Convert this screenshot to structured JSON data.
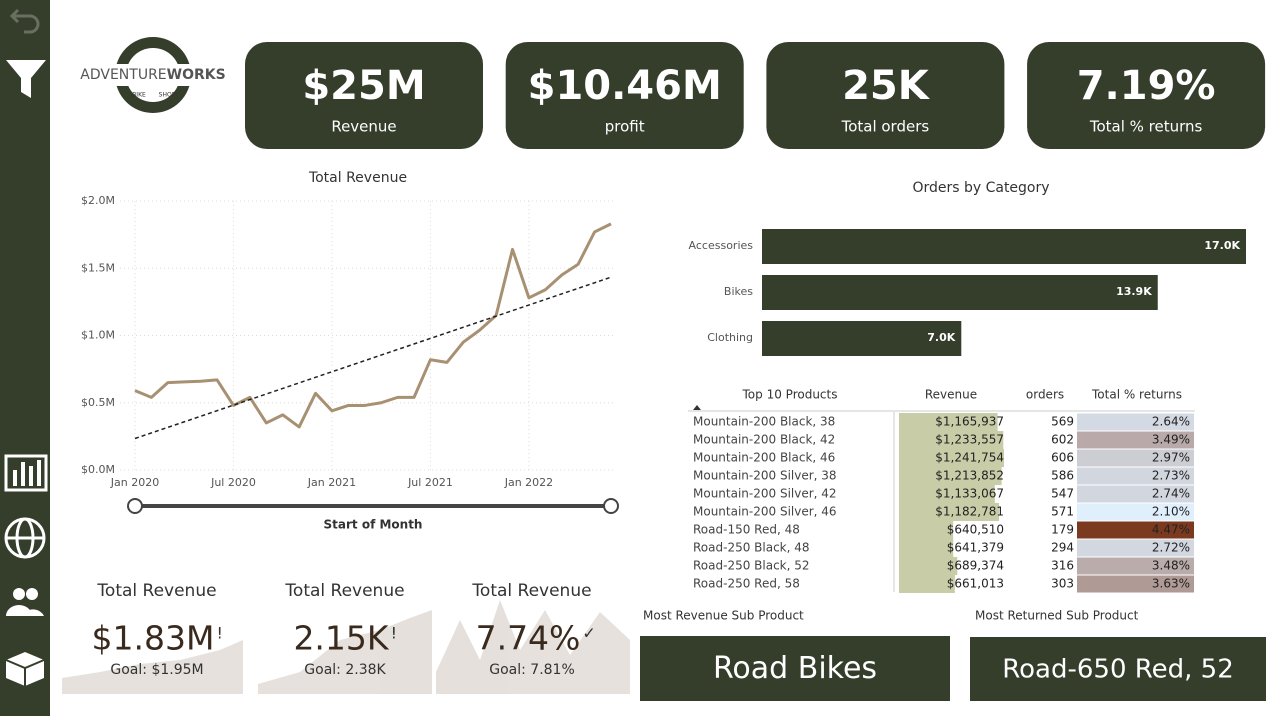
{
  "logo": {
    "name_light": "ADVENTURE",
    "name_bold": "WORKS",
    "left": "BIKE",
    "right": "SHOP"
  },
  "kpis": [
    {
      "value": "$25M",
      "label": "Revenue"
    },
    {
      "value": "$10.46M",
      "label": "profit"
    },
    {
      "value": "25K",
      "label": "Total orders"
    },
    {
      "value": "7.19%",
      "label": "Total % returns"
    }
  ],
  "chart_data": [
    {
      "type": "line",
      "title": "Total Revenue",
      "xlabel": "Start of Month",
      "color": "#a89072",
      "trendline": true,
      "grid": true,
      "x": [
        "2020-01",
        "2020-02",
        "2020-03",
        "2020-04",
        "2020-05",
        "2020-06",
        "2020-07",
        "2020-08",
        "2020-09",
        "2020-10",
        "2020-11",
        "2020-12",
        "2021-01",
        "2021-02",
        "2021-03",
        "2021-04",
        "2021-05",
        "2021-06",
        "2021-07",
        "2021-08",
        "2021-09",
        "2021-10",
        "2021-11",
        "2021-12",
        "2022-01",
        "2022-02",
        "2022-03",
        "2022-04",
        "2022-05",
        "2022-06"
      ],
      "values": [
        0.59,
        0.54,
        0.65,
        0.655,
        0.66,
        0.67,
        0.48,
        0.54,
        0.35,
        0.41,
        0.32,
        0.57,
        0.44,
        0.48,
        0.48,
        0.5,
        0.54,
        0.54,
        0.82,
        0.8,
        0.95,
        1.04,
        1.15,
        1.64,
        1.28,
        1.34,
        1.45,
        1.53,
        1.77,
        1.83
      ],
      "xlim": [
        "2020-01",
        "2022-06"
      ],
      "xticks": [
        {
          "value": "2020-01",
          "label": "Jan 2020"
        },
        {
          "value": "2020-07",
          "label": "Jul 2020"
        },
        {
          "value": "2021-01",
          "label": "Jan 2021"
        },
        {
          "value": "2021-07",
          "label": "Jul 2021"
        },
        {
          "value": "2022-01",
          "label": "Jan 2022"
        }
      ],
      "ylim": [
        0,
        2
      ],
      "yticks": [
        {
          "value": 0,
          "label": "$0.0M"
        },
        {
          "value": 0.5,
          "label": "$0.5M"
        },
        {
          "value": 1,
          "label": "$1.0M"
        },
        {
          "value": 1.5,
          "label": "$1.5M"
        },
        {
          "value": 2,
          "label": "$2.0M"
        }
      ]
    },
    {
      "type": "bar",
      "title": "Orders by Category",
      "orientation": "horizontal",
      "color": "#353d2b",
      "categories": [
        "Accessories",
        "Bikes",
        "Clothing"
      ],
      "values": [
        17000,
        13900,
        7000
      ],
      "value_labels": [
        "17.0K",
        "13.9K",
        "7.0K"
      ]
    }
  ],
  "table": {
    "headers": [
      "Top 10 Products",
      "Revenue",
      "orders",
      "Total % returns"
    ],
    "bar_color": "#c8cda8",
    "returns_colors": [
      "#e0effc",
      "#c6c2c6",
      "#7b3a20"
    ],
    "rows": [
      {
        "product": "Mountain-200 Black, 38",
        "revenue": {
          "value": 1165937,
          "label": "$1,165,937"
        },
        "orders": 569,
        "returns": {
          "value": 2.64,
          "label": "2.64%"
        }
      },
      {
        "product": "Mountain-200 Black, 42",
        "revenue": {
          "value": 1233557,
          "label": "$1,233,557"
        },
        "orders": 602,
        "returns": {
          "value": 3.49,
          "label": "3.49%"
        }
      },
      {
        "product": "Mountain-200 Black, 46",
        "revenue": {
          "value": 1241754,
          "label": "$1,241,754"
        },
        "orders": 606,
        "returns": {
          "value": 2.97,
          "label": "2.97%"
        }
      },
      {
        "product": "Mountain-200 Silver, 38",
        "revenue": {
          "value": 1213852,
          "label": "$1,213,852"
        },
        "orders": 586,
        "returns": {
          "value": 2.73,
          "label": "2.73%"
        }
      },
      {
        "product": "Mountain-200 Silver, 42",
        "revenue": {
          "value": 1133067,
          "label": "$1,133,067"
        },
        "orders": 547,
        "returns": {
          "value": 2.74,
          "label": "2.74%"
        }
      },
      {
        "product": "Mountain-200 Silver, 46",
        "revenue": {
          "value": 1182781,
          "label": "$1,182,781"
        },
        "orders": 571,
        "returns": {
          "value": 2.1,
          "label": "2.10%"
        }
      },
      {
        "product": "Road-150 Red, 48",
        "revenue": {
          "value": 640510,
          "label": "$640,510"
        },
        "orders": 179,
        "returns": {
          "value": 4.47,
          "label": "4.47%"
        }
      },
      {
        "product": "Road-250 Black, 48",
        "revenue": {
          "value": 641379,
          "label": "$641,379"
        },
        "orders": 294,
        "returns": {
          "value": 2.72,
          "label": "2.72%"
        }
      },
      {
        "product": "Road-250 Black, 52",
        "revenue": {
          "value": 689374,
          "label": "$689,374"
        },
        "orders": 316,
        "returns": {
          "value": 3.48,
          "label": "3.48%"
        }
      },
      {
        "product": "Road-250 Red, 58",
        "revenue": {
          "value": 661013,
          "label": "$661,013"
        },
        "orders": 303,
        "returns": {
          "value": 3.63,
          "label": "3.63%"
        }
      }
    ]
  },
  "goal_cards": [
    {
      "title": "Total Revenue",
      "value": "$1.83M",
      "status": "!",
      "goal": "Goal: $1.95M"
    },
    {
      "title": "Total Revenue",
      "value": "2.15K",
      "status": "!",
      "goal": "Goal: 2.38K"
    },
    {
      "title": "Total Revenue",
      "value": "7.74%",
      "status": "✓",
      "goal": "Goal: 7.81%"
    }
  ],
  "sub_products": [
    {
      "label": "Most Revenue Sub Product",
      "value": "Road Bikes"
    },
    {
      "label": "Most Returned Sub Product",
      "value": "Road-650 Red, 52"
    }
  ]
}
